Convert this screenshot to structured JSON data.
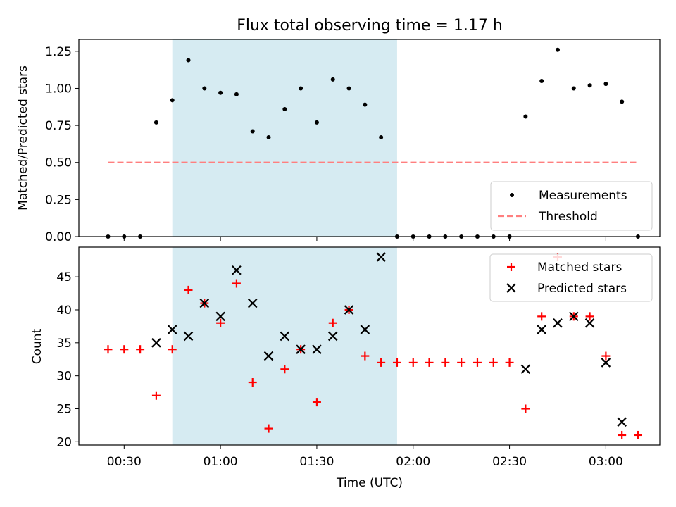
{
  "chart_data": [
    {
      "type": "scatter",
      "title": "Flux total observing time = 1.17 h",
      "xlabel": "",
      "ylabel": "Matched/Predicted stars",
      "ylim": [
        0,
        1.33
      ],
      "yticks": [
        "0.00",
        "0.25",
        "0.50",
        "0.75",
        "1.00",
        "1.25"
      ],
      "shaded_interval": [
        "00:45",
        "01:55"
      ],
      "shade_color": "#add8e6",
      "legend_position": "lower right",
      "series": [
        {
          "name": "Measurements",
          "marker": "dot",
          "color": "#000000",
          "x": [
            "00:25",
            "00:30",
            "00:35",
            "00:40",
            "00:45",
            "00:50",
            "00:55",
            "01:00",
            "01:05",
            "01:10",
            "01:15",
            "01:20",
            "01:25",
            "01:30",
            "01:35",
            "01:40",
            "01:45",
            "01:50",
            "01:55",
            "02:00",
            "02:05",
            "02:10",
            "02:15",
            "02:20",
            "02:25",
            "02:30",
            "02:35",
            "02:40",
            "02:45",
            "02:50",
            "02:55",
            "03:00",
            "03:05",
            "03:10"
          ],
          "y": [
            0.0,
            0.0,
            0.0,
            0.77,
            0.92,
            1.19,
            1.0,
            0.97,
            0.96,
            0.71,
            0.67,
            0.86,
            1.0,
            0.77,
            1.06,
            1.0,
            0.89,
            0.67,
            0.0,
            0.0,
            0.0,
            0.0,
            0.0,
            0.0,
            0.0,
            0.0,
            0.81,
            1.05,
            1.26,
            1.0,
            1.02,
            1.03,
            0.91,
            0.0
          ]
        },
        {
          "name": "Threshold",
          "style": "dashed-line",
          "color": "#ff7f7f",
          "x": [
            "00:25",
            "03:10"
          ],
          "y": [
            0.5,
            0.5
          ]
        }
      ]
    },
    {
      "type": "scatter",
      "title": "",
      "xlabel": "Time (UTC)",
      "ylabel": "Count",
      "ylim": [
        19.5,
        49.5
      ],
      "yticks": [
        "20",
        "25",
        "30",
        "35",
        "40",
        "45"
      ],
      "xticks": [
        "00:30",
        "01:00",
        "01:30",
        "02:00",
        "02:30",
        "03:00"
      ],
      "shaded_interval": [
        "00:45",
        "01:55"
      ],
      "shade_color": "#add8e6",
      "legend_position": "upper right",
      "series": [
        {
          "name": "Matched stars",
          "marker": "plus",
          "color": "#ff0000",
          "x": [
            "00:25",
            "00:30",
            "00:35",
            "00:40",
            "00:45",
            "00:50",
            "00:55",
            "01:00",
            "01:05",
            "01:10",
            "01:15",
            "01:20",
            "01:25",
            "01:30",
            "01:35",
            "01:40",
            "01:45",
            "01:50",
            "01:55",
            "02:00",
            "02:05",
            "02:10",
            "02:15",
            "02:20",
            "02:25",
            "02:30",
            "02:35",
            "02:40",
            "02:45",
            "02:50",
            "02:55",
            "03:00",
            "03:05",
            "03:10"
          ],
          "y": [
            34,
            34,
            34,
            27,
            34,
            43,
            41,
            38,
            44,
            29,
            22,
            31,
            34,
            26,
            38,
            40,
            33,
            32,
            32,
            32,
            32,
            32,
            32,
            32,
            32,
            32,
            25,
            39,
            48,
            39,
            39,
            33,
            21,
            21
          ]
        },
        {
          "name": "Predicted stars",
          "marker": "x",
          "color": "#000000",
          "x": [
            "00:40",
            "00:45",
            "00:50",
            "00:55",
            "01:00",
            "01:05",
            "01:10",
            "01:15",
            "01:20",
            "01:25",
            "01:30",
            "01:35",
            "01:40",
            "01:45",
            "01:50",
            "02:35",
            "02:40",
            "02:45",
            "02:50",
            "02:55",
            "03:00",
            "03:05"
          ],
          "y": [
            35,
            37,
            36,
            41,
            39,
            46,
            41,
            33,
            36,
            34,
            34,
            36,
            40,
            37,
            48,
            31,
            37,
            38,
            39,
            38,
            32,
            23
          ]
        }
      ]
    }
  ]
}
